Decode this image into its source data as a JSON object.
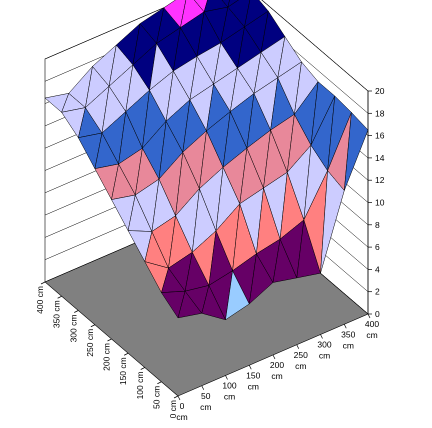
{
  "chart_data": {
    "type": "surface",
    "title": "",
    "x_axis": {
      "ticks": [
        {
          "value": 0,
          "label": "0 cm"
        },
        {
          "value": 50,
          "label": "50 cm"
        },
        {
          "value": 100,
          "label": "100 cm"
        },
        {
          "value": 150,
          "label": "150 cm"
        },
        {
          "value": 200,
          "label": "200 cm"
        },
        {
          "value": 250,
          "label": "250 cm"
        },
        {
          "value": 300,
          "label": "300 cm"
        },
        {
          "value": 350,
          "label": "350 cm"
        },
        {
          "value": 400,
          "label": "400 cm"
        }
      ]
    },
    "y_axis": {
      "ticks": [
        {
          "value": 0,
          "label": "0 cm"
        },
        {
          "value": 50,
          "label": "50 cm"
        },
        {
          "value": 100,
          "label": "100 cm"
        },
        {
          "value": 150,
          "label": "150 cm"
        },
        {
          "value": 200,
          "label": "200 cm"
        },
        {
          "value": 250,
          "label": "250 cm"
        },
        {
          "value": 300,
          "label": "300 cm"
        },
        {
          "value": 350,
          "label": "350 cm"
        },
        {
          "value": 400,
          "label": "400 cm"
        }
      ]
    },
    "z_axis": {
      "range": [
        0,
        20
      ],
      "ticks": [
        "0",
        "2",
        "4",
        "6",
        "8",
        "10",
        "12",
        "14",
        "16",
        "18",
        "20"
      ]
    },
    "x_values": [
      0,
      50,
      100,
      150,
      200,
      250,
      300,
      350,
      400
    ],
    "y_values": [
      0,
      50,
      100,
      150,
      200,
      250,
      300,
      350,
      400
    ],
    "z_grid": [
      [
        7.0,
        6.5,
        5.0,
        5.5,
        6.5,
        6.0,
        5.5,
        12.0,
        16.5
      ],
      [
        8.0,
        7.2,
        6.8,
        7.2,
        7.8,
        8.2,
        9.0,
        12.5,
        16.8
      ],
      [
        9.5,
        8.0,
        8.5,
        9.5,
        11.0,
        11.5,
        12.0,
        13.5,
        17.0
      ],
      [
        11.0,
        10.0,
        10.5,
        12.0,
        13.0,
        13.8,
        14.5,
        15.0,
        17.0
      ],
      [
        12.5,
        12.0,
        12.5,
        14.0,
        15.0,
        15.8,
        16.5,
        17.0,
        17.5
      ],
      [
        14.0,
        13.5,
        14.0,
        15.5,
        16.5,
        17.0,
        17.5,
        18.0,
        18.5
      ],
      [
        15.5,
        15.0,
        16.0,
        17.0,
        17.8,
        18.2,
        18.5,
        19.0,
        19.5
      ],
      [
        16.5,
        16.0,
        17.0,
        18.0,
        19.0,
        19.5,
        20.0,
        19.5,
        20.0
      ],
      [
        16.5,
        16.0,
        17.5,
        18.5,
        19.5,
        20.0,
        20.5,
        20.0,
        20.0
      ]
    ],
    "color_bands": [
      {
        "from": 2,
        "to": 4,
        "color": "#ccffff"
      },
      {
        "from": 4,
        "to": 6,
        "color": "#99ccff"
      },
      {
        "from": 6,
        "to": 8,
        "color": "#660066"
      },
      {
        "from": 8,
        "to": 10,
        "color": "#ff8080"
      },
      {
        "from": 10,
        "to": 12,
        "color": "#ccccff"
      },
      {
        "from": 12,
        "to": 14,
        "color": "#e8889a"
      },
      {
        "from": 14,
        "to": 16,
        "color": "#3366cc"
      },
      {
        "from": 16,
        "to": 18,
        "color": "#ccccff"
      },
      {
        "from": 18,
        "to": 20,
        "color": "#000080"
      },
      {
        "from": 20,
        "to": 22,
        "color": "#ff33ff"
      }
    ],
    "floor_color": "#808080",
    "grid": true,
    "legend": "none"
  }
}
